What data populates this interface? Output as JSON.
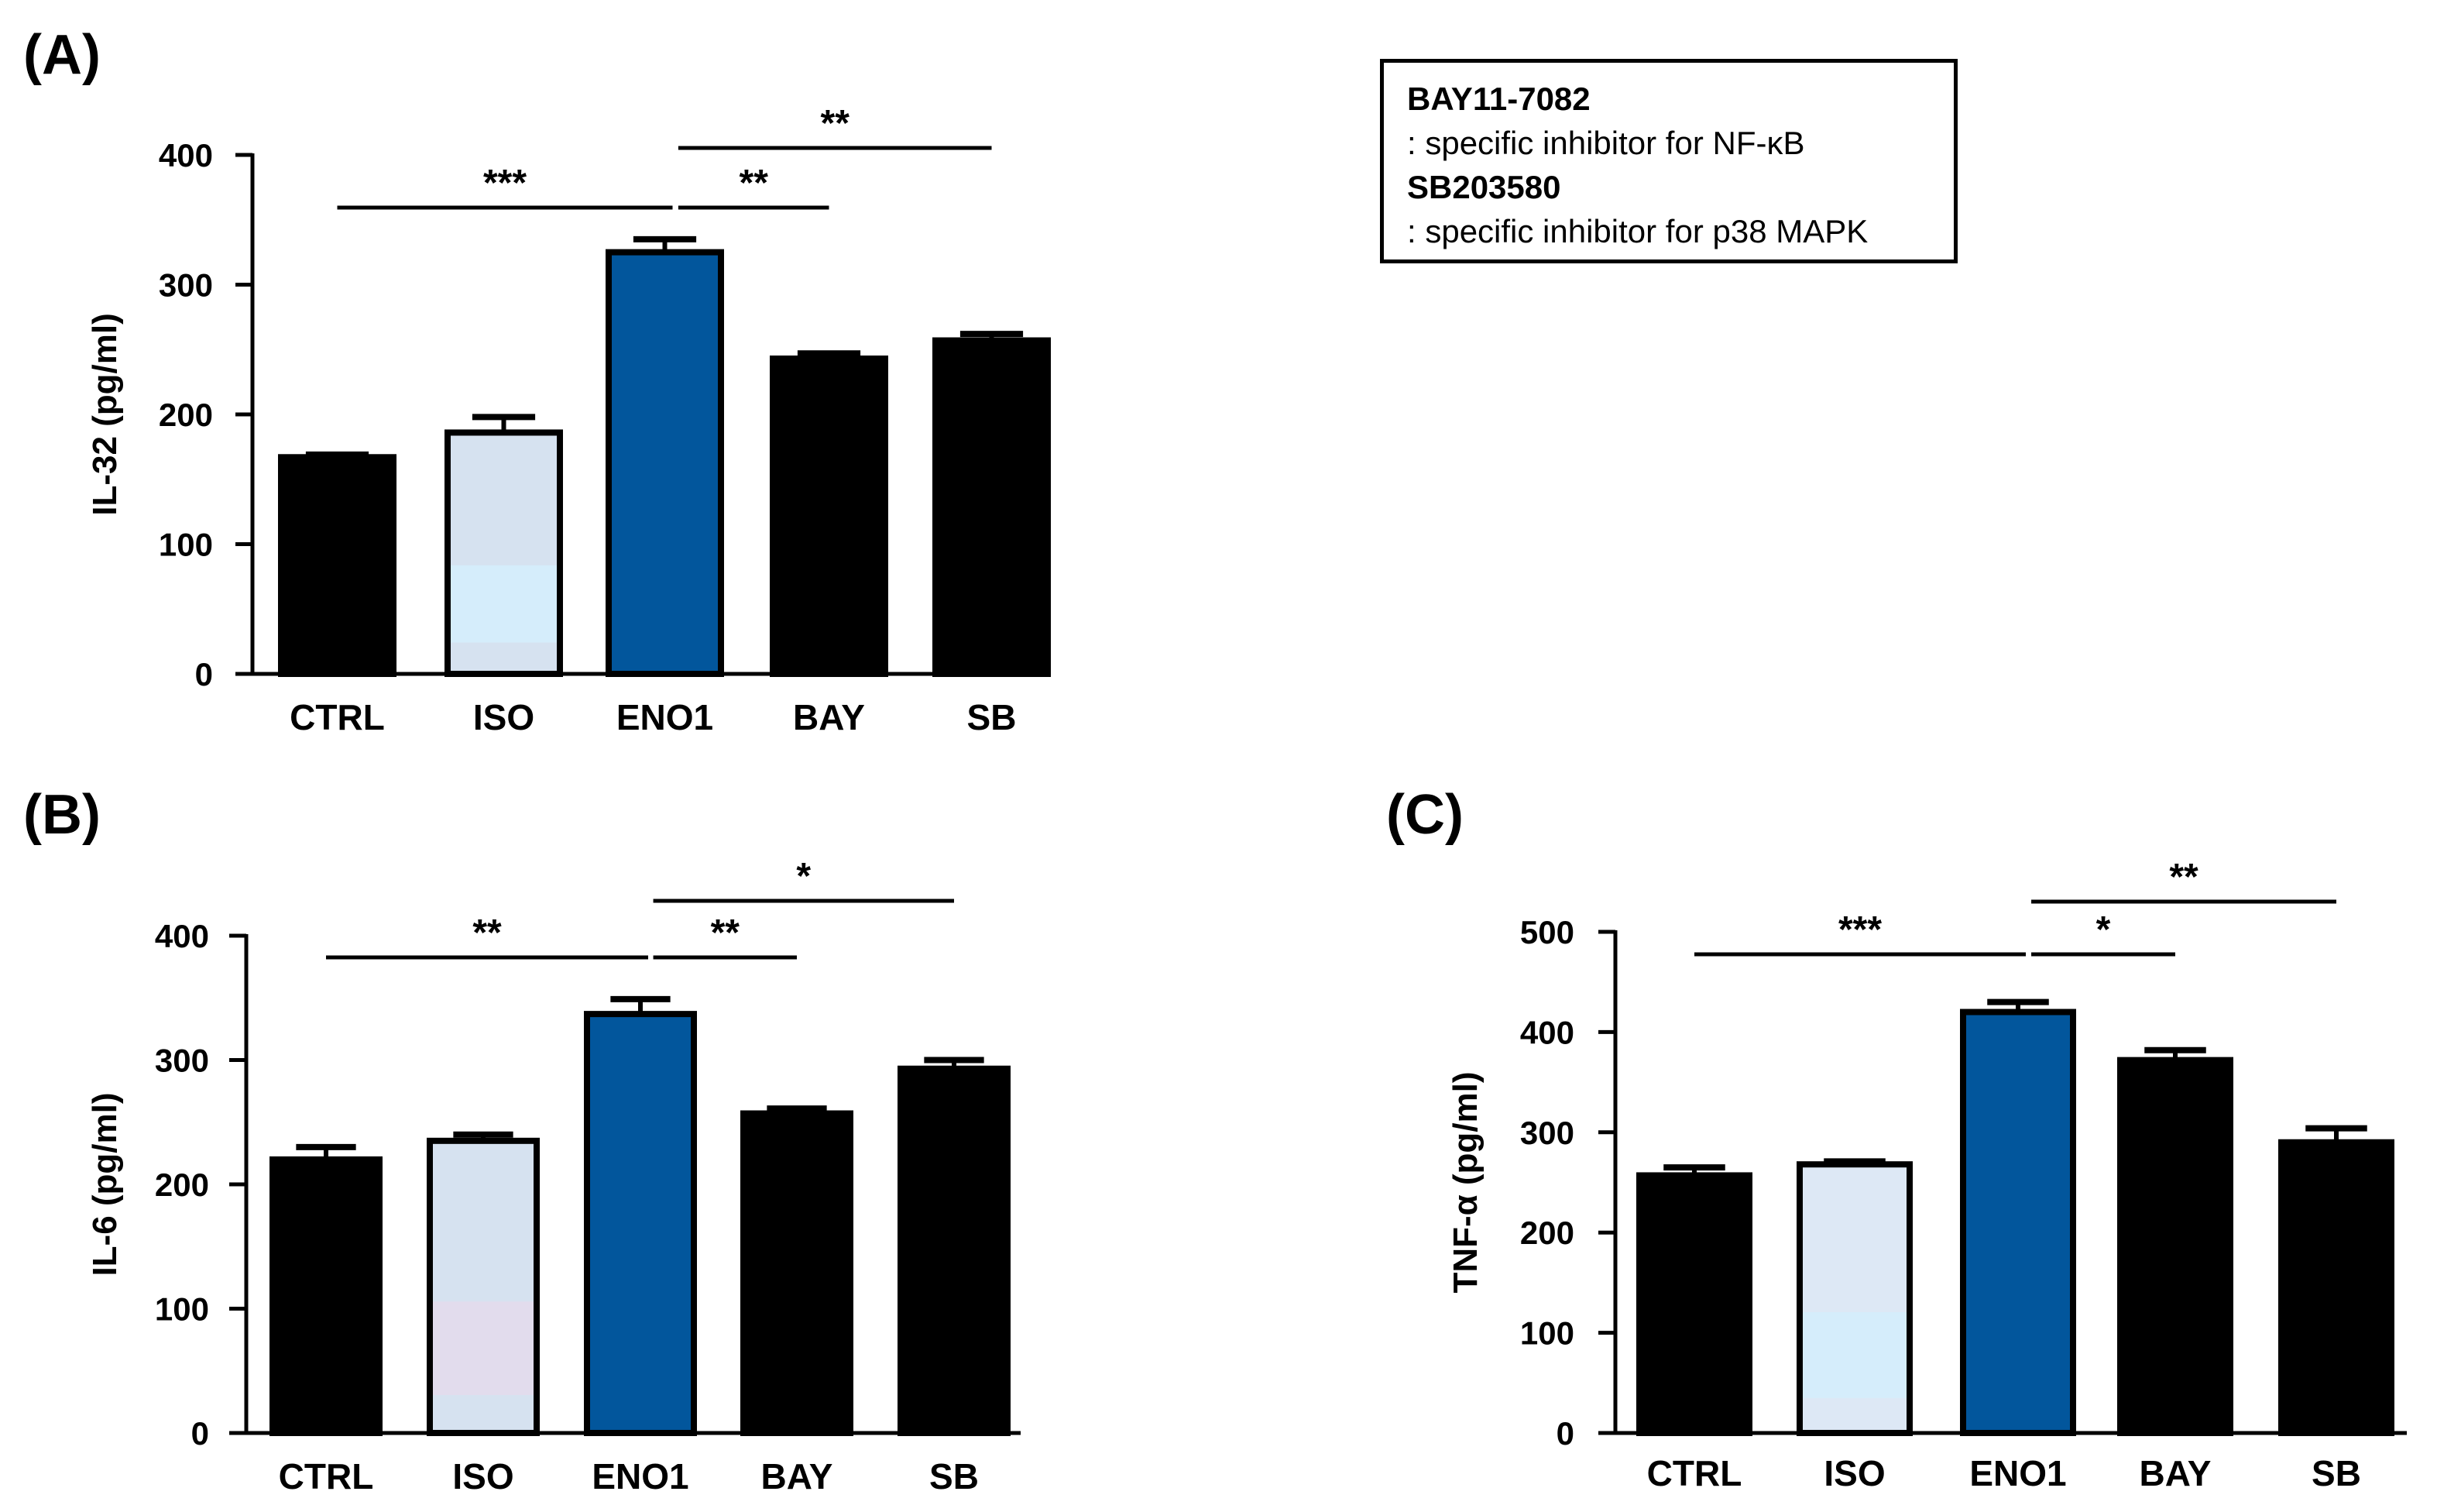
{
  "note": {
    "lines": [
      {
        "text": "BAY11-7082",
        "bold": true
      },
      {
        "text": ": specific inhibitor for NF-κB",
        "bold": false
      },
      {
        "text": "SB203580",
        "bold": true
      },
      {
        "text": ": specific inhibitor for p38 MAPK",
        "bold": false
      }
    ]
  },
  "colors": {
    "black": "#000000",
    "iso_fill": "#d6e2f0",
    "iso_fill_c": "#dde8f5",
    "eno1_fill": "#02569c",
    "iso_band_a": "#d5edfb",
    "iso_band_b": "#e2dced",
    "iso_band_c": "#d5edfb"
  },
  "chart_data": [
    {
      "panel": "(A)",
      "type": "bar",
      "categories": [
        "CTRL",
        "ISO",
        "ENO1",
        "BAY",
        "SB"
      ],
      "values": [
        167,
        186,
        325,
        243,
        257
      ],
      "errors": [
        2,
        12,
        10,
        4,
        5
      ],
      "ylabel": "IL-32 (pg/ml)",
      "ylim": [
        0,
        400
      ],
      "yticks": [
        0,
        100,
        200,
        300,
        400
      ],
      "significance": [
        {
          "from": 0,
          "to": 2,
          "label": "***"
        },
        {
          "from": 2,
          "to": 3,
          "label": "**"
        },
        {
          "from": 2,
          "to": 4,
          "label": "**"
        }
      ]
    },
    {
      "panel": "(B)",
      "type": "bar",
      "categories": [
        "CTRL",
        "ISO",
        "ENO1",
        "BAY",
        "SB"
      ],
      "values": [
        220,
        235,
        337,
        257,
        293
      ],
      "errors": [
        10,
        5,
        12,
        4,
        7
      ],
      "ylabel": "IL-6 (pg/ml)",
      "ylim": [
        0,
        400
      ],
      "yticks": [
        0,
        100,
        200,
        300,
        400
      ],
      "significance": [
        {
          "from": 0,
          "to": 2,
          "label": "**"
        },
        {
          "from": 2,
          "to": 3,
          "label": "**"
        },
        {
          "from": 2,
          "to": 4,
          "label": "*"
        }
      ]
    },
    {
      "panel": "(C)",
      "type": "bar",
      "categories": [
        "CTRL",
        "ISO",
        "ENO1",
        "BAY",
        "SB"
      ],
      "values": [
        257,
        268,
        420,
        372,
        290
      ],
      "errors": [
        8,
        3,
        10,
        10,
        14
      ],
      "ylabel": "TNF-α (pg/ml)",
      "ylim": [
        0,
        500
      ],
      "yticks": [
        0,
        100,
        200,
        300,
        400,
        500
      ],
      "significance": [
        {
          "from": 0,
          "to": 2,
          "label": "***"
        },
        {
          "from": 2,
          "to": 3,
          "label": "*"
        },
        {
          "from": 2,
          "to": 4,
          "label": "**"
        }
      ]
    }
  ]
}
